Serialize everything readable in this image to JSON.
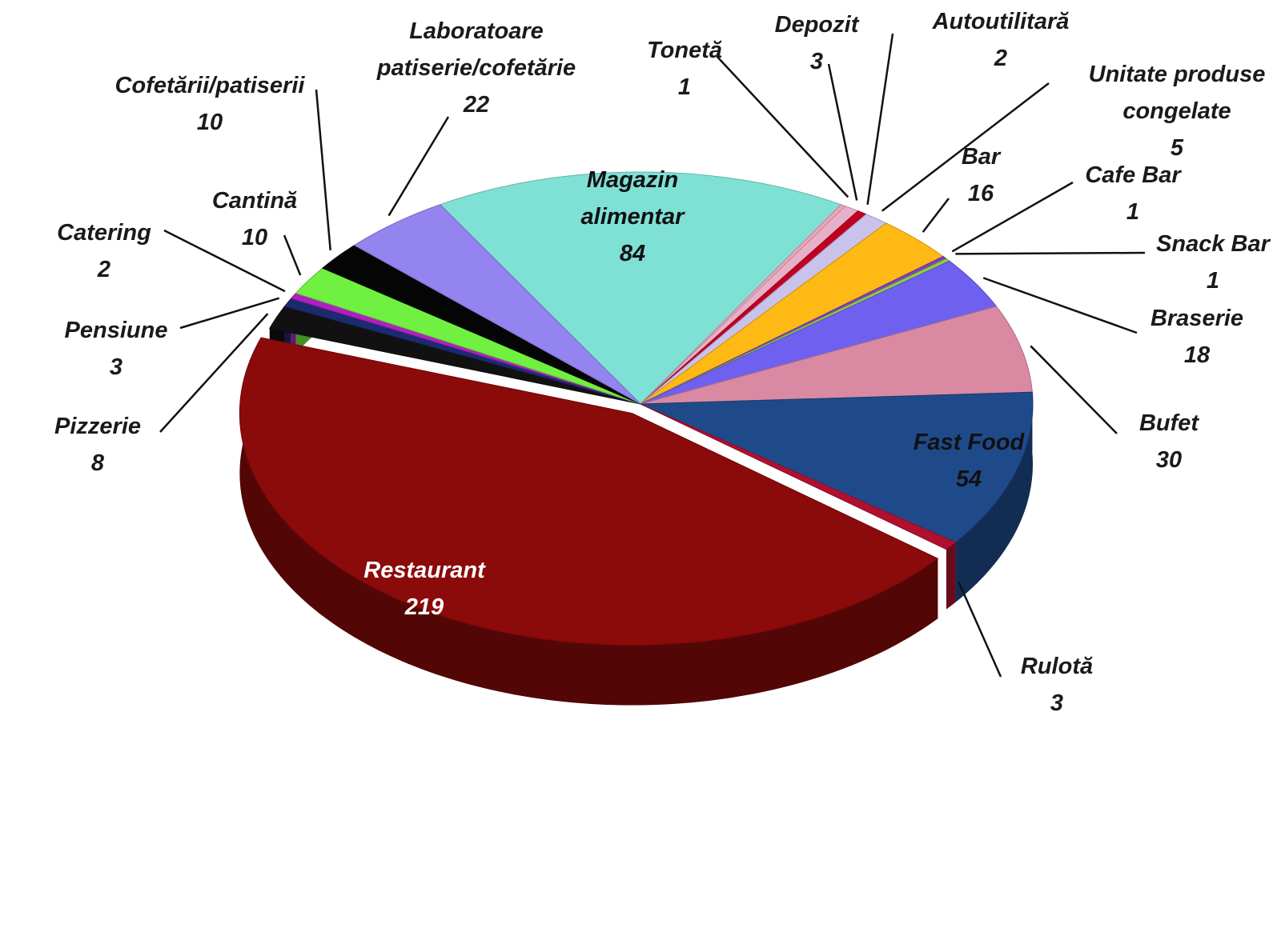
{
  "chart_data": {
    "type": "pie",
    "categories": [
      "Magazin alimentar",
      "Tonetă",
      "Depozit",
      "Autoutilitară",
      "Unitate produse congelate",
      "Bar",
      "Cafe Bar",
      "Snack Bar",
      "Braserie",
      "Bufet",
      "Fast Food",
      "Rulotă",
      "Restaurant",
      "Pizzerie",
      "Pensiune",
      "Catering",
      "Cantină",
      "Cofetării/patiserii",
      "Laboratoare patiserie/cofetărie"
    ],
    "values": [
      84,
      1,
      3,
      2,
      5,
      16,
      1,
      1,
      18,
      30,
      54,
      3,
      219,
      8,
      3,
      2,
      10,
      10,
      22
    ],
    "colors": [
      "#7fe0d6",
      "#f3a3b5",
      "#e6b0c8",
      "#c00020",
      "#c9c2ea",
      "#ffb914",
      "#8040c0",
      "#90d040",
      "#7060f0",
      "#d98aa2",
      "#1f4a8a",
      "#b01030",
      "#8b0a0a",
      "#111111",
      "#1c2a70",
      "#b020c0",
      "#70f040",
      "#050505",
      "#9484f0"
    ]
  }
}
